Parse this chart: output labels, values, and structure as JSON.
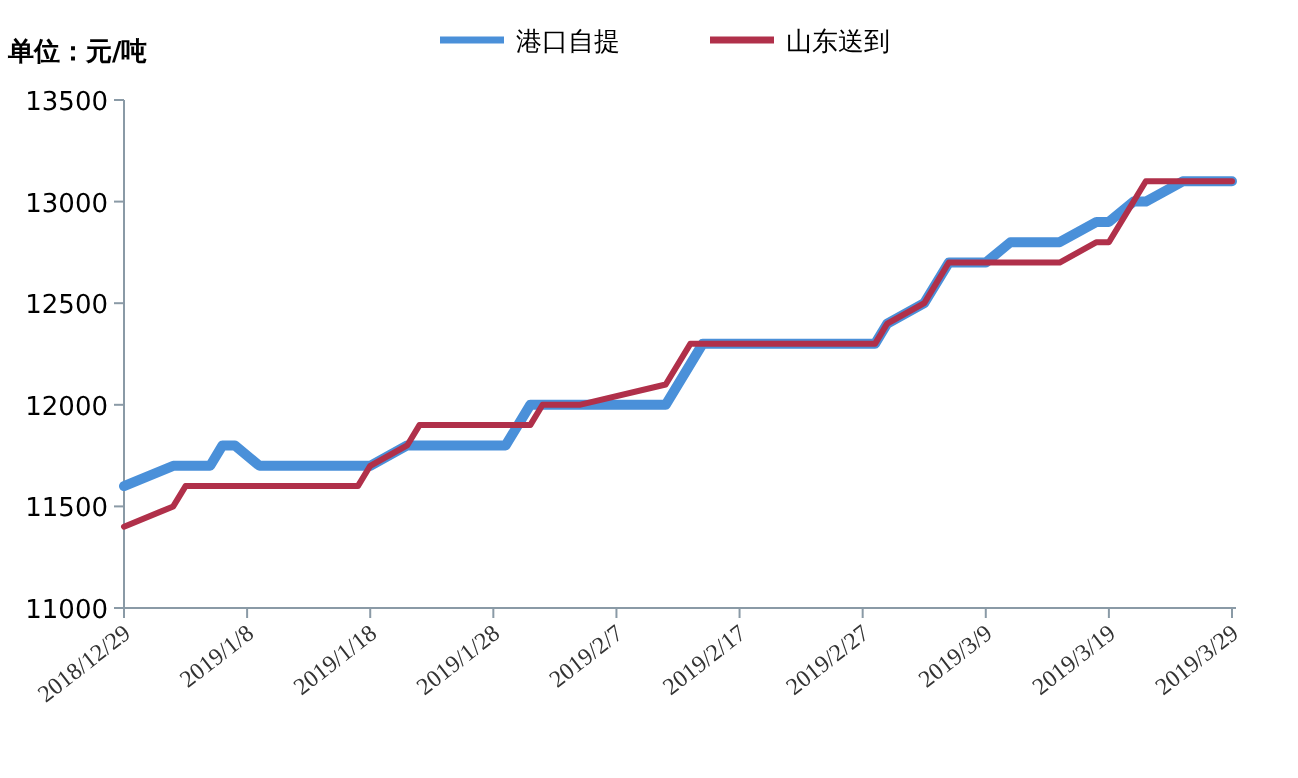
{
  "chart_data": {
    "type": "line",
    "annotations": [
      "单位：元/吨"
    ],
    "xlim": [
      "2018-12-29",
      "2019-03-29"
    ],
    "xticks": [
      {
        "value": "2018-12-29",
        "label": "2018/12/29"
      },
      {
        "value": "2019-01-08",
        "label": "2019/1/8"
      },
      {
        "value": "2019-01-18",
        "label": "2019/1/18"
      },
      {
        "value": "2019-01-28",
        "label": "2019/1/28"
      },
      {
        "value": "2019-02-07",
        "label": "2019/2/7"
      },
      {
        "value": "2019-02-17",
        "label": "2019/2/17"
      },
      {
        "value": "2019-02-27",
        "label": "2019/2/27"
      },
      {
        "value": "2019-03-09",
        "label": "2019/3/9"
      },
      {
        "value": "2019-03-19",
        "label": "2019/3/19"
      },
      {
        "value": "2019-03-29",
        "label": "2019/3/29"
      }
    ],
    "ylim": [
      11000,
      13500
    ],
    "yticks": [
      11000,
      11500,
      12000,
      12500,
      13000,
      13500
    ],
    "legend": "top",
    "line_style": "solid",
    "series": [
      {
        "name": "港口自提",
        "color": "#4a90d9",
        "x": [
          "2018-12-29",
          "2019-01-02",
          "2019-01-05",
          "2019-01-06",
          "2019-01-07",
          "2019-01-09",
          "2019-01-18",
          "2019-01-21",
          "2019-01-29",
          "2019-01-31",
          "2019-02-11",
          "2019-02-14",
          "2019-02-28",
          "2019-03-01",
          "2019-03-04",
          "2019-03-06",
          "2019-03-09",
          "2019-03-11",
          "2019-03-15",
          "2019-03-18",
          "2019-03-19",
          "2019-03-21",
          "2019-03-22",
          "2019-03-25",
          "2019-03-29"
        ],
        "values": [
          11600,
          11700,
          11700,
          11800,
          11800,
          11700,
          11700,
          11800,
          11800,
          12000,
          12000,
          12300,
          12300,
          12400,
          12500,
          12700,
          12700,
          12800,
          12800,
          12900,
          12900,
          13000,
          13000,
          13100,
          13100
        ]
      },
      {
        "name": "山东送到",
        "color": "#b0304a",
        "x": [
          "2018-12-29",
          "2019-01-02",
          "2019-01-03",
          "2019-01-17",
          "2019-01-18",
          "2019-01-21",
          "2019-01-22",
          "2019-01-31",
          "2019-02-01",
          "2019-02-04",
          "2019-02-11",
          "2019-02-13",
          "2019-02-28",
          "2019-03-01",
          "2019-03-04",
          "2019-03-06",
          "2019-03-15",
          "2019-03-18",
          "2019-03-19",
          "2019-03-22",
          "2019-03-29"
        ],
        "values": [
          11400,
          11500,
          11600,
          11600,
          11700,
          11800,
          11900,
          11900,
          12000,
          12000,
          12100,
          12300,
          12300,
          12400,
          12500,
          12700,
          12700,
          12800,
          12800,
          13100,
          13100
        ]
      }
    ]
  }
}
